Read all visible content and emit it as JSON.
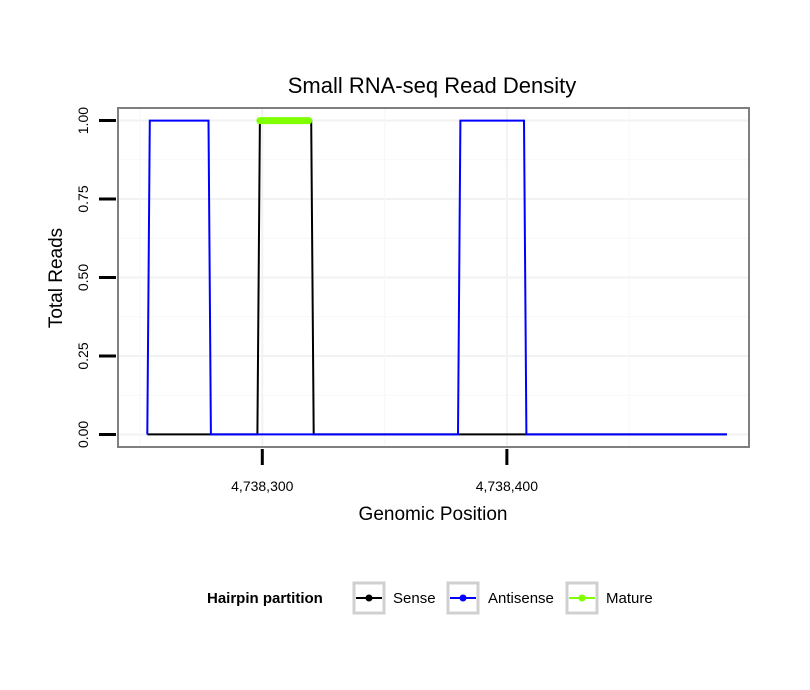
{
  "chart_data": {
    "type": "line",
    "title": "Small RNA-seq Read Density",
    "xlabel": "Genomic Position",
    "ylabel": "Total Reads",
    "xlim": [
      4738241,
      4738499
    ],
    "ylim": [
      -0.04,
      1.04
    ],
    "x_ticks": [
      {
        "value": 4738300,
        "label": "4,738,300"
      },
      {
        "value": 4738400,
        "label": "4,738,400"
      }
    ],
    "y_ticks": [
      {
        "value": 0.0,
        "label": "0.00"
      },
      {
        "value": 0.25,
        "label": "0.25"
      },
      {
        "value": 0.5,
        "label": "0.50"
      },
      {
        "value": 0.75,
        "label": "0.75"
      },
      {
        "value": 1.0,
        "label": "1.00"
      }
    ],
    "grid": true,
    "legend": {
      "title": "Hairpin partition",
      "position": "bottom",
      "entries": [
        {
          "name": "Sense",
          "color": "#000000"
        },
        {
          "name": "Antisense",
          "color": "#0000ff"
        },
        {
          "name": "Mature",
          "color": "#7fff00"
        }
      ]
    },
    "series": [
      {
        "name": "Sense",
        "color": "#000000",
        "x": [
          4738253,
          4738298,
          4738299,
          4738320,
          4738321,
          4738490
        ],
        "y": [
          0,
          0,
          1,
          1,
          0,
          0
        ]
      },
      {
        "name": "Antisense",
        "color": "#0000ff",
        "x": [
          4738253,
          4738254,
          4738278,
          4738279,
          4738298,
          4738299,
          4738320,
          4738321,
          4738380,
          4738381,
          4738407,
          4738408,
          4738490
        ],
        "y": [
          0,
          1,
          1,
          0,
          0,
          0,
          0,
          0,
          0,
          1,
          1,
          0,
          0
        ]
      },
      {
        "name": "Mature",
        "color": "#7fff00",
        "x": [
          4738299,
          4738319
        ],
        "y": [
          1,
          1
        ]
      }
    ]
  }
}
